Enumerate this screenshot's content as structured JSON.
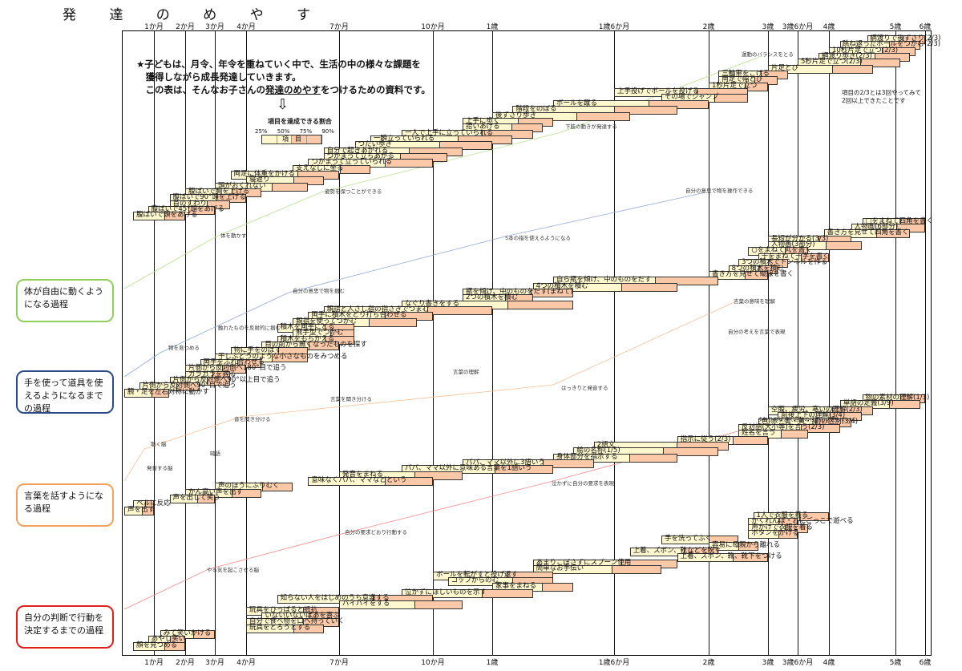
{
  "title": "発 達 の め や す",
  "months_top": [
    {
      "label": "1か月",
      "m": 1
    },
    {
      "label": "2か月",
      "m": 2
    },
    {
      "label": "3か月",
      "m": 3
    },
    {
      "label": "4か月",
      "m": 4
    },
    {
      "label": "7か月",
      "m": 7
    },
    {
      "label": "10か月",
      "m": 10
    },
    {
      "label": "1歳",
      "m": 12
    },
    {
      "label": "1歳6か月",
      "m": 18
    },
    {
      "label": "2歳",
      "m": 24
    },
    {
      "label": "3歳",
      "m": 36
    },
    {
      "label": "3歳6か月",
      "m": 42
    },
    {
      "label": "4歳",
      "m": 48
    },
    {
      "label": "5歳",
      "m": 60
    },
    {
      "label": "6歳",
      "m": 72
    }
  ],
  "note": {
    "line1": "★子どもは、月令、年令を重ねていく中で、生活の中の様々な課題を",
    "line2": "　獲得しながら成長発達していきます。",
    "line3a": "　この表は、そんなお子さんの",
    "line3b": "発達のめやす",
    "line3c": "をつけるための資料です。"
  },
  "legend": {
    "title": "項目を達成できる割合",
    "pcts": "25% 50% 75% 90%",
    "item": "項　目"
  },
  "right_note": {
    "line1": "項目の2/3とは3回やってみて",
    "line2": "2回以上できたことです"
  },
  "categories": [
    {
      "label": "体が自由に動くようになる過程",
      "color": "#8fcf5a"
    },
    {
      "label": "手を使って道具を使えるようになるまでの過程",
      "color": "#2a4a8a"
    },
    {
      "label": "言葉を話すようになる過程",
      "color": "#f2a25c"
    },
    {
      "label": "自分の判断で行動を決定するまでの過程",
      "color": "#e0201c"
    }
  ],
  "annotations": [
    "運動のバランスをとる",
    "下肢の動きが発達する",
    "姿勢を保つことができる",
    "体を動かす",
    "自分の意思で物を操作できる",
    "5本の指を使えるようになる",
    "自分の意思で物を掴む",
    "触れたものを反射的に掴む",
    "物を見つめる",
    "言葉の意味を理解",
    "自分の考えを言葉で表現",
    "言葉の理解",
    "はっきりと発音する",
    "言葉を聞き分ける",
    "音を聞き分ける",
    "聴く脳",
    "喃語",
    "発音する脳",
    "まわりの状況で自分の行動を決定していく",
    "泣かずに自分の要求を表現",
    "自分の要求どおり行動する",
    "やる気を起こさせる脳"
  ],
  "items": [
    {
      "label": "綱渡りで後ずさり(2/3)",
      "s": 55,
      "e": 72
    },
    {
      "label": "跳ね返ったボールをつかむ(2/3)",
      "s": 50,
      "e": 70
    },
    {
      "label": "10秒片足で立つ(2/3)",
      "s": 48,
      "e": 68
    },
    {
      "label": "綱渡り歩き(2/3)",
      "s": 46,
      "e": 66
    },
    {
      "label": "5秒片足で立つ(2/3)",
      "s": 42,
      "e": 62
    },
    {
      "label": "片足とび",
      "s": 36,
      "e": 56
    },
    {
      "label": "三輪車をこげる",
      "s": 26,
      "e": 40
    },
    {
      "label": "両足で幅とび",
      "s": 26,
      "e": 38
    },
    {
      "label": "1秒片足で立つ",
      "s": 24,
      "e": 36
    },
    {
      "label": "上手投げでボールを投げる",
      "s": 18,
      "e": 32
    },
    {
      "label": "その場でジャンプ",
      "s": 21,
      "e": 32
    },
    {
      "label": "ボールを蹴る",
      "s": 15,
      "e": 24
    },
    {
      "label": "階段をのぼる",
      "s": 13,
      "e": 22
    },
    {
      "label": "後ずさり歩き",
      "s": 12,
      "e": 19
    },
    {
      "label": "上手に歩く",
      "s": 11,
      "e": 15
    },
    {
      "label": "拾いあげる",
      "s": 11,
      "e": 14.5
    },
    {
      "label": "一人で上手に立っていられる",
      "s": 9,
      "e": 14
    },
    {
      "label": "一瞬立っていられる",
      "s": 8,
      "e": 13
    },
    {
      "label": "つたい歩き",
      "s": 7.5,
      "e": 12
    },
    {
      "label": "自分で起きあがれる",
      "s": 6.5,
      "e": 11
    },
    {
      "label": "つかまって立ちあがる",
      "s": 6.5,
      "e": 10.5
    },
    {
      "label": "つかまって立っていられる",
      "s": 6,
      "e": 10
    },
    {
      "label": "支えなしに坐る",
      "s": 5.5,
      "e": 8
    },
    {
      "label": "両足に体重をかける",
      "s": 3.5,
      "e": 7
    },
    {
      "label": "寝返り",
      "s": 4,
      "e": 6.5
    },
    {
      "label": "頭がおくれない",
      "s": 3,
      "e": 6
    },
    {
      "label": "腹ばいで胸を上げる",
      "s": 2,
      "e": 4.5
    },
    {
      "label": "腹ばいで90°頭を上げる",
      "s": 1.5,
      "e": 4
    },
    {
      "label": "首のすわり",
      "s": 1.5,
      "e": 3.5
    },
    {
      "label": "腹ばいで45°頭をあげる",
      "s": 0.8,
      "e": 3
    },
    {
      "label": "腹ばいで頭をあげる",
      "s": 0.3,
      "e": 2
    },
    {
      "label": "□をまねて四角を書く",
      "s": 54,
      "e": 75
    },
    {
      "label": "人物画(6部分)",
      "s": 52,
      "e": 72
    },
    {
      "label": "書き方を見せて四角を書く",
      "s": 47,
      "e": 66
    },
    {
      "label": "長短が分かる(3/3)",
      "s": 36,
      "e": 52
    },
    {
      "label": "人物画(3部分)",
      "s": 36,
      "e": 54
    },
    {
      "label": "○をまねて丸を書く",
      "s": 32,
      "e": 44
    },
    {
      "label": "十をまねて十字を書く",
      "s": 34,
      "e": 48
    },
    {
      "label": "3つの積木でトンネルを作る",
      "s": 30,
      "e": 40
    },
    {
      "label": "8つの積木を積む",
      "s": 28,
      "e": 38
    },
    {
      "label": "書き方を見せて縦線を書く",
      "s": 24,
      "e": 36
    },
    {
      "label": "自ら瓶を傾け、中のものをだす",
      "s": 15,
      "e": 26
    },
    {
      "label": "4つの積木を積む",
      "s": 14,
      "e": 22
    },
    {
      "label": "瓶を傾け、中のものをだす(まねて)",
      "s": 11,
      "e": 16
    },
    {
      "label": "2つの積木を積む",
      "s": 11,
      "e": 14
    },
    {
      "label": "なぐり書きをする",
      "s": 9,
      "e": 16
    },
    {
      "label": "親指と人さし指の指さきでつまむ",
      "s": 6.5,
      "e": 12
    },
    {
      "label": "両手に積木をとり打ち合わせる",
      "s": 6,
      "e": 10
    },
    {
      "label": "親指を使ってつかむ",
      "s": 5.5,
      "e": 9.5
    },
    {
      "label": "積木を両手にとる",
      "s": 5,
      "e": 7.5
    },
    {
      "label": "熊手型でつかむ",
      "s": 5.5,
      "e": 7.5
    },
    {
      "label": "積木をもちかえる",
      "s": 5,
      "e": 7.5
    },
    {
      "label": "目の前から無くなったものを探す",
      "s": 4.5,
      "e": 7
    },
    {
      "label": "物に手をのばす",
      "s": 3.5,
      "e": 6
    },
    {
      "label": "干しぶどうのような小さなものをみつめる",
      "s": 3,
      "e": 6
    },
    {
      "label": "両手をふれ合わせる",
      "s": 2.5,
      "e": 4.5
    },
    {
      "label": "片側から反対側へ180°目で追う",
      "s": 2,
      "e": 4
    },
    {
      "label": "ガラガラを握る",
      "s": 2,
      "e": 3.5
    },
    {
      "label": "片側から反対側へ90°以上目で追う",
      "s": 1.5,
      "e": 3.5
    },
    {
      "label": "片側から反対側へ90°目で追う",
      "s": 0.5,
      "e": 2.5
    },
    {
      "label": "腕・足を左右対称に動かす",
      "s": 0,
      "e": 1.5
    },
    {
      "label": "物の素材の理解(1/3)",
      "s": 54,
      "e": 74
    },
    {
      "label": "単語の定義(3/9)",
      "s": 50,
      "e": 70
    },
    {
      "label": "空腹、疲労、寒いの理解(2/3)",
      "s": 36,
      "e": 56
    },
    {
      "label": "前後上下の理解(3/4)",
      "s": 38,
      "e": 54
    },
    {
      "label": "色(赤・青・黄・緑)の区別(3/4)",
      "s": 34,
      "e": 52
    },
    {
      "label": "反対語(大小等)を言う(2/3)",
      "s": 30,
      "e": 50
    },
    {
      "label": "姓名を言う",
      "s": 30,
      "e": 44
    },
    {
      "label": "指示に従う(2/3)",
      "s": 22,
      "e": 36
    },
    {
      "label": "2語文",
      "s": 17,
      "e": 28
    },
    {
      "label": "絵の名称(1/5)",
      "s": 16,
      "e": 26
    },
    {
      "label": "身体部分を指示する",
      "s": 15,
      "e": 22
    },
    {
      "label": "パパ、ママ以外に3語いう",
      "s": 11,
      "e": 17
    },
    {
      "label": "パパ、ママ以外に意味ある言葉を1語いう",
      "s": 9,
      "e": 15
    },
    {
      "label": "発音をまねる",
      "s": 7,
      "e": 11
    },
    {
      "label": "意味なくパパ、ママなどという",
      "s": 6,
      "e": 10
    },
    {
      "label": "声のほうにふりむく",
      "s": 3,
      "e": 5.5
    },
    {
      "label": "かん高い声を出す",
      "s": 2,
      "e": 4.5
    },
    {
      "label": "声を出して笑う",
      "s": 1.5,
      "e": 3
    },
    {
      "label": "ベルに反応",
      "s": 0.3,
      "e": 1
    },
    {
      "label": "声を出す",
      "s": 0,
      "e": 1
    },
    {
      "label": "1人で衣服を着る",
      "s": 33,
      "e": 48
    },
    {
      "label": "かくれんぼ・おにごっこで遊べる",
      "s": 32,
      "e": 42
    },
    {
      "label": "声かけで衣服を着る",
      "s": 32,
      "e": 44
    },
    {
      "label": "ボタンをかける",
      "s": 32,
      "e": 42
    },
    {
      "label": "手を洗ってふく",
      "s": 21,
      "e": 30
    },
    {
      "label": "容易に母親から離れる",
      "s": 24,
      "e": 34
    },
    {
      "label": "上着、ズボン、靴などを脱ぐ",
      "s": 19,
      "e": 26
    },
    {
      "label": "上着、ズボン、靴、靴下をつける",
      "s": 22,
      "e": 36
    },
    {
      "label": "あまりこぼさずにスプーン使用",
      "s": 14,
      "e": 22
    },
    {
      "label": "簡単なお手伝い",
      "s": 14,
      "e": 21
    },
    {
      "label": "ボールを転がすと投げ返す",
      "s": 10,
      "e": 15
    },
    {
      "label": "コップからのむ",
      "s": 10.5,
      "e": 15
    },
    {
      "label": "家事をまねる",
      "s": 12,
      "e": 16
    },
    {
      "label": "泣かずにほしいものを示す",
      "s": 9,
      "e": 14
    },
    {
      "label": "知らない人をはじめのうち意識する",
      "s": 5,
      "e": 10
    },
    {
      "label": "バイバイをする",
      "s": 7,
      "e": 11
    },
    {
      "label": "玩具をひっぱると抵抗",
      "s": 4,
      "e": 7
    },
    {
      "label": "いないいないばあを喜ぶ",
      "s": 4.5,
      "e": 7
    },
    {
      "label": "自分で食べ物を口へ持っていく",
      "s": 4,
      "e": 7
    },
    {
      "label": "玩具をとろうとする",
      "s": 4,
      "e": 6.5
    },
    {
      "label": "みて笑いかける",
      "s": 1.2,
      "e": 3
    },
    {
      "label": "あやし笑い",
      "s": 0.8,
      "e": 2
    },
    {
      "label": "顔を見つめる",
      "s": 0.3,
      "e": 2
    }
  ]
}
